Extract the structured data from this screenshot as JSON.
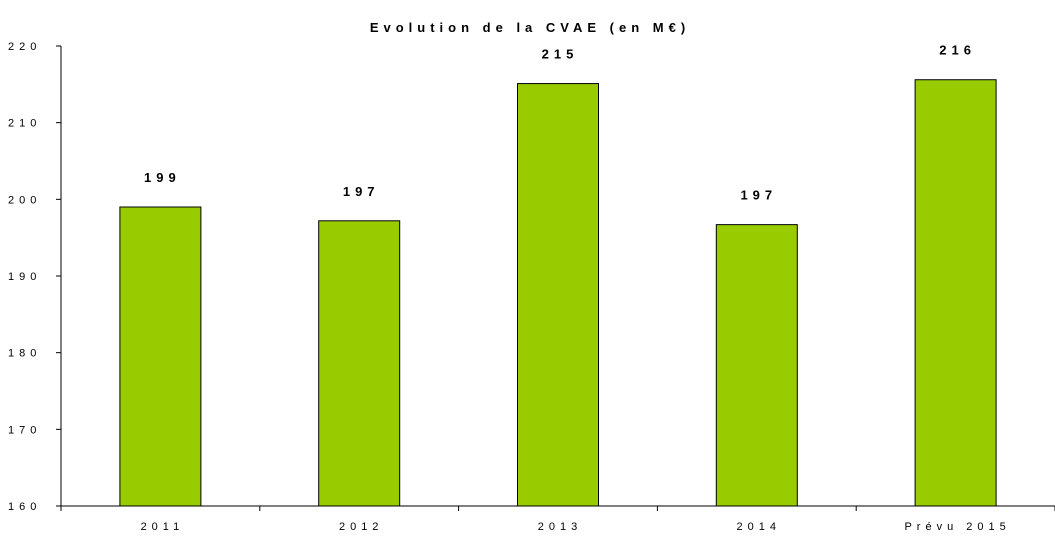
{
  "chart_data": {
    "type": "bar",
    "title": "Evolution de la CVAE (en M€)",
    "categories": [
      "2011",
      "2012",
      "2013",
      "2014",
      "Prévu 2015"
    ],
    "values": [
      199,
      197.2,
      215.1,
      196.7,
      215.6
    ],
    "data_labels": [
      "199",
      "197",
      "215",
      "197",
      "216"
    ],
    "xlabel": "",
    "ylabel": "",
    "ylim": [
      160,
      220
    ],
    "yticks": [
      160,
      170,
      180,
      190,
      200,
      210,
      220
    ],
    "ytick_labels": [
      "160",
      "170",
      "180",
      "190",
      "200",
      "210",
      "220"
    ],
    "grid": false,
    "legend": "none",
    "colors": {
      "bar_fill": "#99CC00",
      "bar_stroke": "#000000",
      "axis": "#000000"
    }
  }
}
